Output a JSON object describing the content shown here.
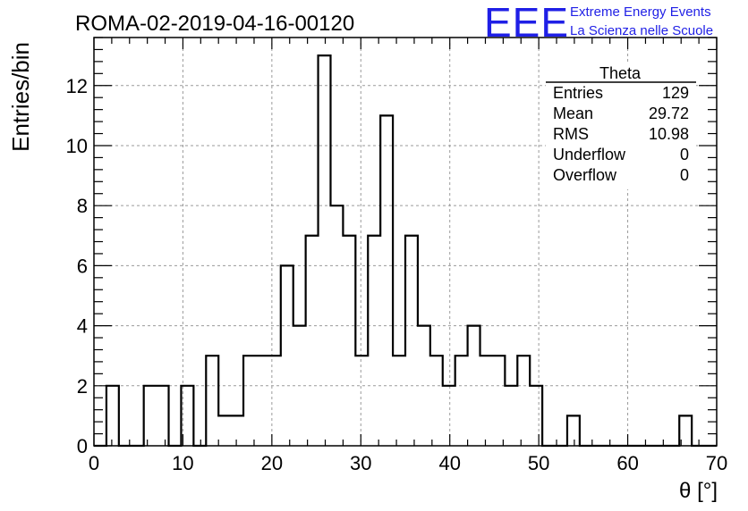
{
  "header": {
    "run_title": "ROMA-02-2019-04-16-00120",
    "logo_text": "EEE",
    "project_line1": "Extreme Energy Events",
    "project_line2": "La Scienza nelle Scuole"
  },
  "colors": {
    "logo": "#1f1fe6",
    "histogram_line": "#000000",
    "grid": "#9a9a9a"
  },
  "stats_box": {
    "title": "Theta",
    "rows": [
      {
        "label": "Entries",
        "value": "129"
      },
      {
        "label": "Mean",
        "value": "29.72"
      },
      {
        "label": "RMS",
        "value": "10.98"
      },
      {
        "label": "Underflow",
        "value": "0"
      },
      {
        "label": "Overflow",
        "value": "0"
      }
    ]
  },
  "chart_data": {
    "type": "bar",
    "style": "step-histogram",
    "title": "ROMA-02-2019-04-16-00120",
    "xlabel": "θ [°]",
    "ylabel": "Entries/bin",
    "xlim": [
      0,
      70
    ],
    "ylim": [
      0,
      13.6
    ],
    "bin_width": 1.4,
    "grid": true,
    "legend": "top-right",
    "x_ticks": [
      0,
      10,
      20,
      30,
      40,
      50,
      60,
      70
    ],
    "y_ticks": [
      0,
      2,
      4,
      6,
      8,
      10,
      12
    ],
    "bin_edges": [
      0,
      1.4,
      2.8,
      4.2,
      5.6,
      7.0,
      8.4,
      9.8,
      11.2,
      12.6,
      14.0,
      15.4,
      16.8,
      18.2,
      19.6,
      21.0,
      22.4,
      23.8,
      25.2,
      26.6,
      28.0,
      29.4,
      30.8,
      32.2,
      33.6,
      35.0,
      36.4,
      37.8,
      39.2,
      40.6,
      42.0,
      43.4,
      44.8,
      46.2,
      47.6,
      49.0,
      50.4,
      51.8,
      53.2,
      54.6,
      56.0,
      57.4,
      58.8,
      60.2,
      61.6,
      63.0,
      64.4,
      65.8,
      67.2,
      68.6,
      70.0
    ],
    "values": [
      0,
      2,
      0,
      0,
      2,
      2,
      0,
      2,
      0,
      3,
      1,
      1,
      3,
      3,
      3,
      6,
      4,
      7,
      13,
      8,
      7,
      3,
      7,
      11,
      3,
      7,
      4,
      3,
      2,
      3,
      4,
      3,
      3,
      2,
      3,
      2,
      0,
      0,
      1,
      0,
      0,
      0,
      0,
      0,
      0,
      0,
      0,
      1,
      0,
      0
    ]
  }
}
